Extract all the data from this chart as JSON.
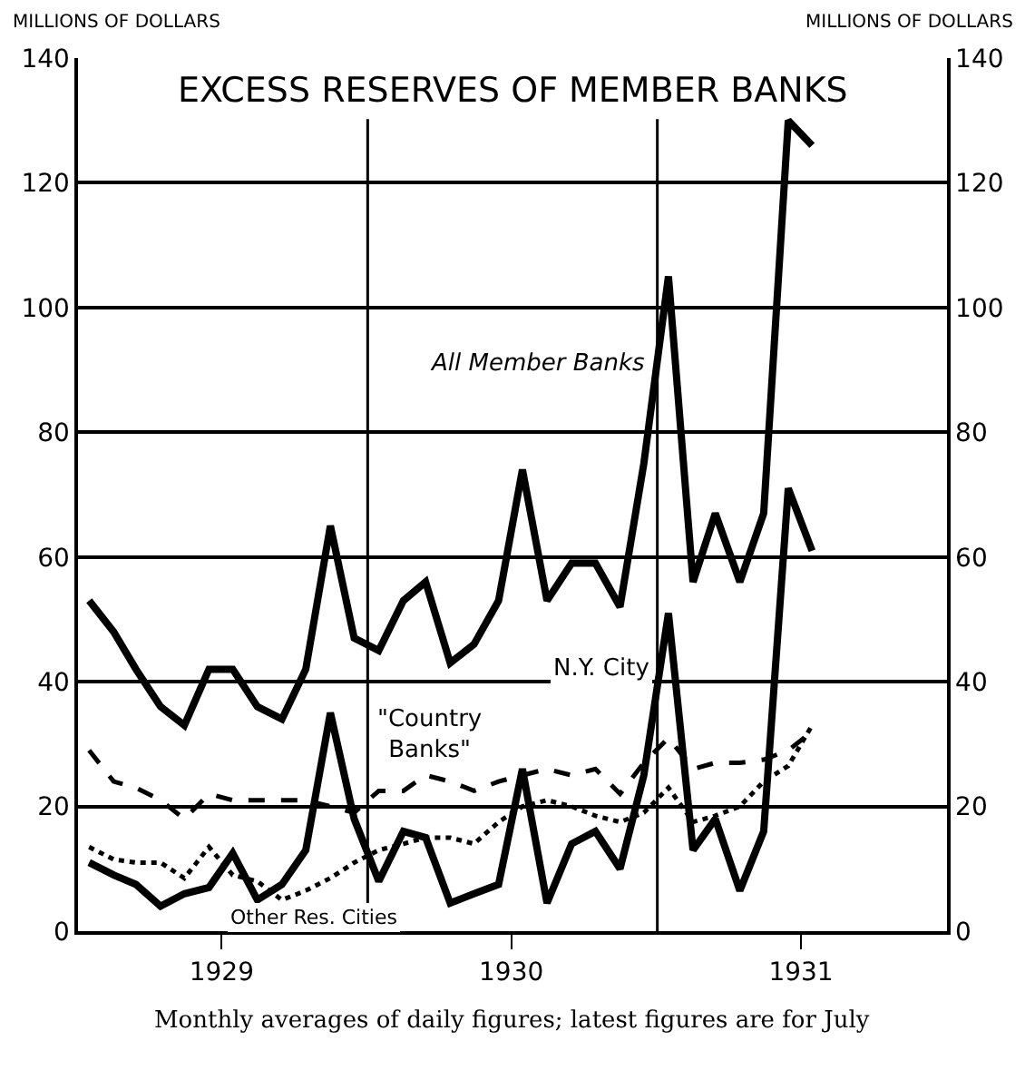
{
  "chart_data": {
    "type": "line",
    "title": "EXCESS RESERVES OF MEMBER BANKS",
    "ylabel": "MILLIONS OF DOLLARS",
    "y2label": "MILLIONS OF DOLLARS",
    "x": [
      "1929-01-15",
      "1929-02-15",
      "1929-03-15",
      "1929-04-15",
      "1929-05-15",
      "1929-06-15",
      "1929-07-15",
      "1929-08-15",
      "1929-09-15",
      "1929-10-15",
      "1929-11-15",
      "1929-12-15",
      "1930-01-15",
      "1930-02-15",
      "1930-03-15",
      "1930-04-15",
      "1930-05-15",
      "1930-06-15",
      "1930-07-15",
      "1930-08-15",
      "1930-09-15",
      "1930-10-15",
      "1930-11-15",
      "1930-12-15",
      "1931-01-15",
      "1931-02-15",
      "1931-03-15",
      "1931-04-15",
      "1931-05-15",
      "1931-06-15",
      "1931-07-15"
    ],
    "series": [
      {
        "name": "All Member Banks",
        "color": "#000000",
        "line_style": "solid",
        "values": [
          53,
          48,
          42,
          36,
          33,
          42,
          42,
          36,
          34,
          42,
          65,
          47,
          45,
          53,
          56,
          43,
          46,
          53,
          74,
          53,
          59,
          59,
          52,
          75,
          105,
          56,
          67,
          56,
          67,
          130,
          126
        ]
      },
      {
        "name": "N.Y. City",
        "color": "#000000",
        "line_style": "solid",
        "values": [
          11,
          9,
          7.5,
          4,
          6,
          7,
          12.5,
          5,
          7.5,
          13,
          35,
          18,
          8,
          16,
          15,
          4.5,
          6,
          7.5,
          26,
          4.5,
          14,
          16,
          10,
          25,
          51,
          13,
          18,
          6.5,
          16,
          71,
          61
        ]
      },
      {
        "name": "\"Country Banks\"",
        "color": "#000000",
        "line_style": "dashed",
        "values": [
          29,
          24,
          23,
          21,
          18,
          22,
          21,
          21,
          21,
          21,
          20,
          19,
          22.5,
          22.5,
          25,
          24,
          22.5,
          24,
          25,
          26,
          25,
          26,
          22,
          27,
          31,
          26,
          27,
          27,
          27.5,
          29,
          32
        ]
      },
      {
        "name": "Other Res. Cities",
        "color": "#000000",
        "line_style": "dotted",
        "values": [
          13.5,
          11.5,
          11,
          11,
          8.5,
          13.5,
          9,
          8,
          5,
          6.5,
          8.5,
          11,
          13,
          14,
          15,
          15,
          14,
          17.5,
          20,
          21,
          20,
          18.5,
          17.5,
          19,
          23,
          17.5,
          18.5,
          20,
          24,
          26.5,
          33
        ]
      }
    ],
    "xlim": [
      "1929-01-01",
      "1932-01-01"
    ],
    "xticks": [
      {
        "value": "1929-07-01",
        "label": "1929"
      },
      {
        "value": "1930-07-01",
        "label": "1930"
      },
      {
        "value": "1931-07-01",
        "label": "1931"
      }
    ],
    "ylim": [
      0,
      140
    ],
    "yticks": [
      0,
      20,
      40,
      60,
      80,
      100,
      120,
      140
    ],
    "y2lim": [
      0,
      140
    ],
    "y2ticks": [
      0,
      20,
      40,
      60,
      80,
      100,
      120,
      140
    ],
    "grid": "y",
    "legend": false,
    "ref_lines": [
      {
        "axis": "x",
        "value": "1930-01-01",
        "color": "#000000"
      },
      {
        "axis": "x",
        "value": "1931-01-01",
        "color": "#000000"
      }
    ],
    "annotations": [
      "Monthly averages of daily figures; latest figures are for July"
    ]
  }
}
